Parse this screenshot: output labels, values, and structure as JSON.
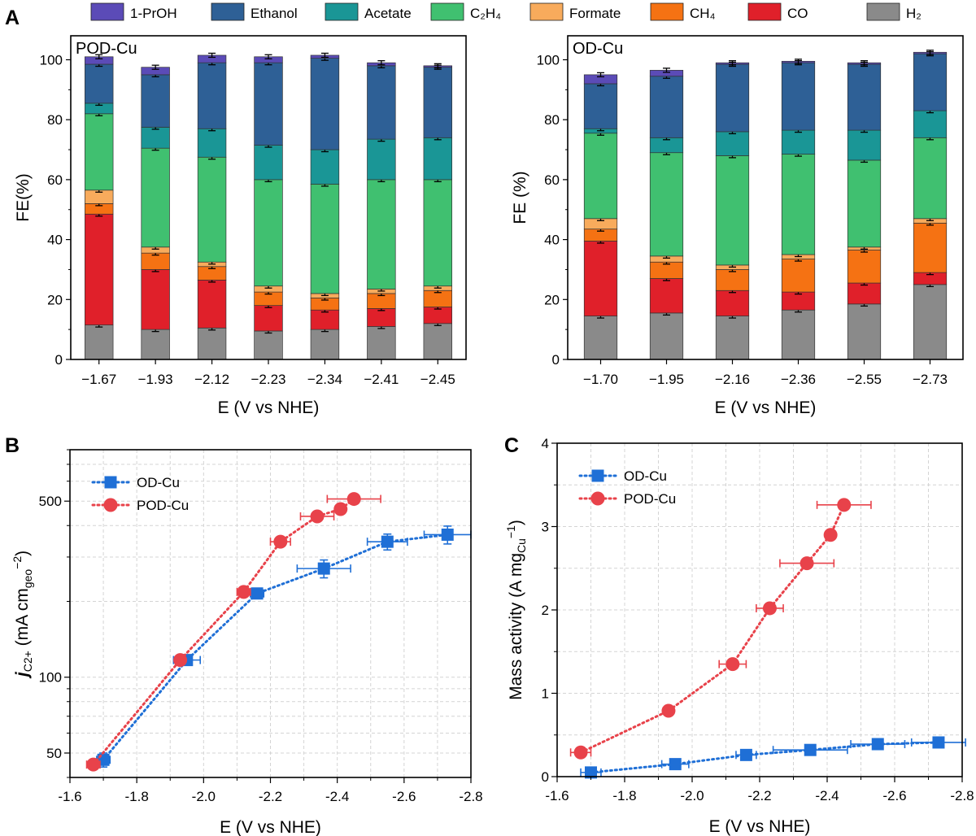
{
  "figure": {
    "panel_letters": [
      "A",
      "B",
      "C"
    ],
    "legend_a": [
      {
        "label": "1-PrOH",
        "color": "#5b4bb7"
      },
      {
        "label": "Ethanol",
        "color": "#2e6096"
      },
      {
        "label": "Acetate",
        "color": "#1a9696"
      },
      {
        "label": "C₂H₄",
        "color": "#40c070"
      },
      {
        "label": "Formate",
        "color": "#f8ab5c"
      },
      {
        "label": "CH₄",
        "color": "#f57213"
      },
      {
        "label": "CO",
        "color": "#e0202a"
      },
      {
        "label": "H₂",
        "color": "#8a8a8a"
      }
    ]
  },
  "chart_data": [
    {
      "id": "A-left",
      "type": "bar",
      "stacked": true,
      "panel_tag": "POD-Cu",
      "xlabel": "E (V vs NHE)",
      "ylabel": "FE(%)",
      "ylim": [
        0,
        108
      ],
      "yticks": [
        0,
        20,
        40,
        60,
        80,
        100
      ],
      "categories": [
        "−1.67",
        "−1.93",
        "−2.12",
        "−2.23",
        "−2.34",
        "−2.41",
        "−2.45"
      ],
      "series": [
        {
          "name": "H₂",
          "values": [
            11.5,
            10,
            10.5,
            9.5,
            10,
            11,
            12
          ]
        },
        {
          "name": "CO",
          "values": [
            37,
            20,
            16,
            8.5,
            6.5,
            6,
            5.5
          ]
        },
        {
          "name": "CH₄",
          "values": [
            3.5,
            5.5,
            4.5,
            4.5,
            4,
            5,
            5.5
          ]
        },
        {
          "name": "Formate",
          "values": [
            4.5,
            2,
            1.5,
            2,
            1.5,
            1.5,
            1.5
          ]
        },
        {
          "name": "C₂H₄",
          "values": [
            25.5,
            33,
            35,
            35.5,
            36.5,
            36.5,
            35.5
          ]
        },
        {
          "name": "Acetate",
          "values": [
            3.5,
            7,
            9.5,
            11.5,
            11.5,
            13.5,
            14
          ]
        },
        {
          "name": "Ethanol",
          "values": [
            13,
            17.5,
            22,
            27.5,
            30.5,
            24.5,
            23.5
          ]
        },
        {
          "name": "1-PrOH",
          "values": [
            2.5,
            2.5,
            2.5,
            2,
            1,
            1,
            0.5
          ]
        }
      ]
    },
    {
      "id": "A-right",
      "type": "bar",
      "stacked": true,
      "panel_tag": "OD-Cu",
      "xlabel": "E (V vs NHE)",
      "ylabel": "FE (%)",
      "ylim": [
        0,
        108
      ],
      "yticks": [
        0,
        20,
        40,
        60,
        80,
        100
      ],
      "categories": [
        "−1.70",
        "−1.95",
        "−2.16",
        "−2.36",
        "−2.55",
        "−2.73"
      ],
      "series": [
        {
          "name": "H₂",
          "values": [
            14.5,
            15.5,
            14.5,
            16.5,
            18.5,
            25
          ]
        },
        {
          "name": "CO",
          "values": [
            25,
            11.5,
            8.5,
            6,
            7,
            4
          ]
        },
        {
          "name": "CH₄",
          "values": [
            4,
            5.5,
            7,
            11,
            11,
            16.5
          ]
        },
        {
          "name": "Formate",
          "values": [
            3.5,
            2,
            1.5,
            1.5,
            1,
            1.5
          ]
        },
        {
          "name": "C₂H₄",
          "values": [
            28.5,
            34.5,
            36.5,
            33.5,
            29,
            27
          ]
        },
        {
          "name": "Acetate",
          "values": [
            1.5,
            5,
            8,
            8,
            10,
            9
          ]
        },
        {
          "name": "Ethanol",
          "values": [
            15,
            20.5,
            22.5,
            22.5,
            22,
            19
          ]
        },
        {
          "name": "1-PrOH",
          "values": [
            3,
            2,
            0.5,
            0.5,
            0.5,
            0.5
          ]
        }
      ]
    },
    {
      "id": "B",
      "type": "scatter",
      "yscale": "log",
      "xlabel": "E (V vs NHE)",
      "ylabel_main": "j",
      "ylabel_sub": "C2+",
      "ylabel_units": " (mA cm",
      "ylabel_unit_sub": "geo",
      "ylabel_unit_sup": "−2",
      "xlim": [
        -1.6,
        -2.8
      ],
      "ylim": [
        40,
        800
      ],
      "xticks": [
        -1.6,
        -1.8,
        -2.0,
        -2.2,
        -2.4,
        -2.6,
        -2.8
      ],
      "xticklabels": [
        "-1.6",
        "-1.8",
        "-2.0",
        "-2.2",
        "-2.4",
        "-2.6",
        "-2.8"
      ],
      "yticks": [
        50,
        100,
        500
      ],
      "yticklabels": [
        "50",
        "100",
        "500"
      ],
      "legend": "top-left",
      "series": [
        {
          "name": "OD-Cu",
          "color": "#1f6fd6",
          "marker": "square",
          "x": [
            -1.7,
            -1.95,
            -2.16,
            -2.36,
            -2.55,
            -2.73
          ],
          "y": [
            47,
            117,
            215,
            270,
            345,
            368
          ],
          "xerr": [
            0.02,
            0.04,
            0.02,
            0.08,
            0.06,
            0.07
          ],
          "yerr": [
            3,
            4,
            8,
            22,
            25,
            30
          ]
        },
        {
          "name": "POD-Cu",
          "color": "#e8424a",
          "marker": "circle",
          "x": [
            -1.67,
            -1.93,
            -2.12,
            -2.23,
            -2.34,
            -2.41,
            -2.45
          ],
          "y": [
            45,
            117,
            218,
            345,
            435,
            465,
            510
          ],
          "xerr": [
            0.02,
            0.01,
            0.02,
            0.03,
            0.05,
            0.01,
            0.08
          ],
          "yerr": [
            0,
            0,
            0,
            0,
            0,
            0,
            0
          ]
        }
      ]
    },
    {
      "id": "C",
      "type": "scatter",
      "xlabel": "E (V vs NHE)",
      "ylabel_main": "Mass activity (A mg",
      "ylabel_sub": "Cu",
      "ylabel_sup": "−1",
      "ylabel_end": ")",
      "xlim": [
        -1.6,
        -2.8
      ],
      "ylim": [
        0,
        4
      ],
      "xticks": [
        -1.6,
        -1.8,
        -2.0,
        -2.2,
        -2.4,
        -2.6,
        -2.8
      ],
      "xticklabels": [
        "-1.6",
        "-1.8",
        "-2.0",
        "-2.2",
        "-2.4",
        "-2.6",
        "-2.8"
      ],
      "yticks": [
        0,
        1,
        2,
        3,
        4
      ],
      "yticklabels": [
        "0",
        "1",
        "2",
        "3",
        "4"
      ],
      "legend": "top-left",
      "series": [
        {
          "name": "OD-Cu",
          "color": "#1f6fd6",
          "marker": "square",
          "x": [
            -1.7,
            -1.95,
            -2.16,
            -2.35,
            -2.55,
            -2.73
          ],
          "y": [
            0.05,
            0.15,
            0.26,
            0.32,
            0.39,
            0.41
          ],
          "xerr": [
            0.03,
            0.04,
            0.03,
            0.11,
            0.08,
            0.08
          ],
          "yerr": [
            0.02,
            0.02,
            0.03,
            0.03,
            0.03,
            0.03
          ]
        },
        {
          "name": "POD-Cu",
          "color": "#e8424a",
          "marker": "circle",
          "x": [
            -1.67,
            -1.93,
            -2.12,
            -2.23,
            -2.34,
            -2.41,
            -2.45
          ],
          "y": [
            0.29,
            0.79,
            1.35,
            2.02,
            2.56,
            2.9,
            3.26
          ],
          "xerr": [
            0.03,
            0.01,
            0.04,
            0.04,
            0.08,
            0.01,
            0.08
          ],
          "yerr": [
            0,
            0,
            0,
            0,
            0,
            0,
            0
          ]
        }
      ]
    }
  ]
}
